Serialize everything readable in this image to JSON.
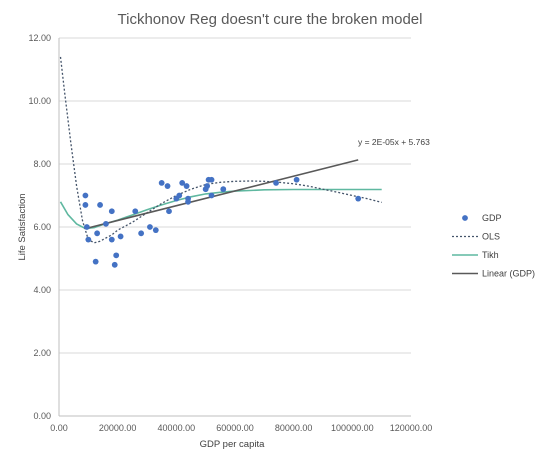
{
  "chart_data": {
    "type": "scatter",
    "title": "Tickhonov Reg doesn't cure the broken model",
    "xlabel": "GDP per capita",
    "ylabel": "Life Satisfaction",
    "xlim": [
      0,
      120000
    ],
    "ylim": [
      0,
      12
    ],
    "x_ticks": [
      "0.00",
      "20000.00",
      "40000.00",
      "60000.00",
      "80000.00",
      "100000.00",
      "120000.00"
    ],
    "y_ticks": [
      "0.00",
      "2.00",
      "4.00",
      "6.00",
      "8.00",
      "10.00",
      "12.00"
    ],
    "grid": "horizontal",
    "legend_position": "right",
    "annotation": "y = 2E-05x + 5.763",
    "colors": {
      "gdp": "#4472c4",
      "ols": "#44546a",
      "tikh": "#5fb8a0",
      "linear": "#595959",
      "grid": "#d9d9d9",
      "axis": "#bfbfbf"
    },
    "series": [
      {
        "name": "GDP",
        "kind": "scatter",
        "points": [
          [
            9000,
            7.0
          ],
          [
            9000,
            6.7
          ],
          [
            9500,
            6.0
          ],
          [
            10000,
            5.6
          ],
          [
            12500,
            4.9
          ],
          [
            13000,
            5.8
          ],
          [
            14000,
            6.7
          ],
          [
            16000,
            6.1
          ],
          [
            18000,
            6.5
          ],
          [
            18000,
            5.6
          ],
          [
            19000,
            4.8
          ],
          [
            19500,
            5.1
          ],
          [
            21000,
            5.7
          ],
          [
            26000,
            6.5
          ],
          [
            28000,
            5.8
          ],
          [
            31000,
            6.0
          ],
          [
            33000,
            5.9
          ],
          [
            35000,
            7.4
          ],
          [
            37000,
            7.3
          ],
          [
            37500,
            6.5
          ],
          [
            40000,
            6.9
          ],
          [
            41000,
            7.0
          ],
          [
            42000,
            7.4
          ],
          [
            43500,
            7.3
          ],
          [
            44000,
            6.8
          ],
          [
            44000,
            6.9
          ],
          [
            50000,
            7.2
          ],
          [
            50500,
            7.3
          ],
          [
            51000,
            7.5
          ],
          [
            52000,
            7.5
          ],
          [
            52000,
            7.0
          ],
          [
            56000,
            7.2
          ],
          [
            74000,
            7.4
          ],
          [
            81000,
            7.5
          ],
          [
            102000,
            6.9
          ]
        ]
      },
      {
        "name": "OLS",
        "kind": "line",
        "dash": "dotted",
        "points": [
          [
            500,
            11.4
          ],
          [
            2000,
            10.2
          ],
          [
            4000,
            8.7
          ],
          [
            6000,
            7.3
          ],
          [
            8000,
            6.2
          ],
          [
            10000,
            5.6
          ],
          [
            12000,
            5.5
          ],
          [
            14000,
            5.55
          ],
          [
            16000,
            5.65
          ],
          [
            18000,
            5.75
          ],
          [
            20000,
            5.9
          ],
          [
            25000,
            6.15
          ],
          [
            30000,
            6.45
          ],
          [
            35000,
            6.75
          ],
          [
            40000,
            7.0
          ],
          [
            45000,
            7.2
          ],
          [
            50000,
            7.35
          ],
          [
            55000,
            7.42
          ],
          [
            60000,
            7.45
          ],
          [
            65000,
            7.46
          ],
          [
            70000,
            7.45
          ],
          [
            75000,
            7.42
          ],
          [
            80000,
            7.37
          ],
          [
            85000,
            7.3
          ],
          [
            90000,
            7.2
          ],
          [
            95000,
            7.1
          ],
          [
            100000,
            7.0
          ],
          [
            105000,
            6.9
          ],
          [
            110000,
            6.78
          ]
        ]
      },
      {
        "name": "Tikh",
        "kind": "line",
        "dash": "solid",
        "points": [
          [
            500,
            6.8
          ],
          [
            3000,
            6.4
          ],
          [
            6000,
            6.1
          ],
          [
            9000,
            5.95
          ],
          [
            12000,
            5.98
          ],
          [
            15000,
            6.08
          ],
          [
            20000,
            6.22
          ],
          [
            25000,
            6.38
          ],
          [
            30000,
            6.55
          ],
          [
            35000,
            6.7
          ],
          [
            40000,
            6.84
          ],
          [
            45000,
            6.96
          ],
          [
            50000,
            7.05
          ],
          [
            55000,
            7.1
          ],
          [
            60000,
            7.14
          ],
          [
            65000,
            7.16
          ],
          [
            70000,
            7.18
          ],
          [
            80000,
            7.19
          ],
          [
            90000,
            7.19
          ],
          [
            100000,
            7.19
          ],
          [
            110000,
            7.19
          ]
        ]
      },
      {
        "name": "Linear (GDP)",
        "kind": "line",
        "dash": "solid",
        "points": [
          [
            9000,
            5.95
          ],
          [
            102000,
            8.13
          ]
        ]
      }
    ]
  }
}
